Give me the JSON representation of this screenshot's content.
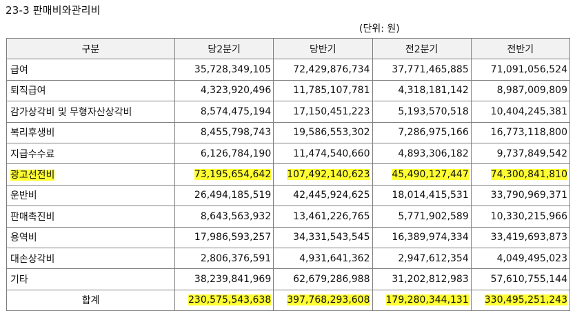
{
  "title": "23-3 판매비와관리비",
  "unit": "(단위: 원)",
  "header": [
    "구분",
    "당2분기",
    "당반기",
    "전2분기",
    "전반기"
  ],
  "highlight_color": "#ffff33",
  "rows": [
    {
      "label": "급여",
      "values": [
        "35,728,349,105",
        "72,429,876,734",
        "37,771,465,885",
        "71,091,056,524"
      ],
      "highlighted": false
    },
    {
      "label": "퇴직급여",
      "values": [
        "4,323,920,496",
        "11,785,107,781",
        "4,318,181,142",
        "8,987,009,809"
      ],
      "highlighted": false
    },
    {
      "label": "감가상각비 및 무형자산상각비",
      "values": [
        "8,574,475,194",
        "17,150,451,223",
        "5,193,570,518",
        "10,404,245,381"
      ],
      "highlighted": false
    },
    {
      "label": "복리후생비",
      "values": [
        "8,455,798,743",
        "19,586,553,302",
        "7,286,975,166",
        "16,773,118,800"
      ],
      "highlighted": false
    },
    {
      "label": "지급수수료",
      "values": [
        "6,126,784,190",
        "11,474,540,660",
        "4,893,306,182",
        "9,737,849,542"
      ],
      "highlighted": false
    },
    {
      "label": "광고선전비",
      "values": [
        "73,195,654,642",
        "107,492,140,623",
        "45,490,127,447",
        "74,300,841,810"
      ],
      "highlighted": true
    },
    {
      "label": "운반비",
      "values": [
        "26,494,185,519",
        "42,445,924,625",
        "18,014,415,531",
        "33,790,969,371"
      ],
      "highlighted": false
    },
    {
      "label": "판매촉진비",
      "values": [
        "8,643,563,932",
        "13,461,226,765",
        "5,771,902,589",
        "10,330,215,966"
      ],
      "highlighted": false
    },
    {
      "label": "용역비",
      "values": [
        "17,986,593,257",
        "34,331,543,545",
        "16,389,974,334",
        "33,419,693,873"
      ],
      "highlighted": false
    },
    {
      "label": "대손상각비",
      "values": [
        "2,806,376,591",
        "4,931,641,362",
        "2,947,612,354",
        "4,049,495,023"
      ],
      "highlighted": false
    },
    {
      "label": "기타",
      "values": [
        "38,239,841,969",
        "62,679,286,988",
        "31,202,812,983",
        "57,610,755,144"
      ],
      "highlighted": false
    }
  ],
  "total": {
    "label": "합계",
    "values": [
      "230,575,543,638",
      "397,768,293,608",
      "179,280,344,131",
      "330,495,251,243"
    ],
    "highlighted": true
  }
}
